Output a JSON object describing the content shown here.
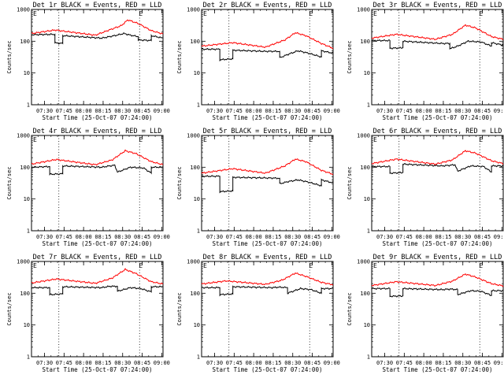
{
  "chart_data": [
    {
      "type": "line",
      "title": "Det 1r BLACK = Events, RED = LLD",
      "xlabel": "Start Time (25-Oct-07 07:24:00)",
      "ylabel": "Counts/sec",
      "yscale": "log",
      "ylim": [
        1,
        1000
      ],
      "xlim_minutes": [
        [
          -4,
          97
        ]
      ],
      "xticks": [
        "07:30",
        "07:45",
        "08:00",
        "08:15",
        "08:30",
        "08:45",
        "09:00"
      ],
      "yticks": [
        "1",
        "10",
        "100",
        "1000"
      ],
      "vlines": [
        "07:41",
        "08:43"
      ],
      "markers": [
        "E",
        "E"
      ],
      "series": [
        {
          "color": "#000000",
          "values": [
            [
              -4,
              160
            ],
            [
              14,
              165
            ],
            [
              14,
              88
            ],
            [
              20,
              85
            ],
            [
              20,
              150
            ],
            [
              50,
              125
            ],
            [
              60,
              150
            ],
            [
              67,
              175
            ],
            [
              72,
              155
            ],
            [
              78,
              140
            ],
            [
              78,
              110
            ],
            [
              88,
              105
            ],
            [
              88,
              150
            ],
            [
              97,
              125
            ]
          ]
        },
        {
          "color": "#ff0000",
          "values": [
            [
              -4,
              175
            ],
            [
              14,
              225
            ],
            [
              45,
              155
            ],
            [
              55,
              220
            ],
            [
              65,
              310
            ],
            [
              70,
              470
            ],
            [
              78,
              360
            ],
            [
              88,
              215
            ],
            [
              97,
              170
            ]
          ]
        }
      ]
    },
    {
      "type": "line",
      "title": "Det 2r BLACK = Events, RED = LLD",
      "xlabel": "Start Time (25-Oct-07 07:24:00)",
      "ylabel": "Counts/sec",
      "yscale": "log",
      "ylim": [
        1,
        1000
      ],
      "xticks": [
        "07:30",
        "07:45",
        "08:00",
        "08:15",
        "08:30",
        "08:45",
        "09:00"
      ],
      "yticks": [
        "1",
        "10",
        "100",
        "1000"
      ],
      "vlines": [
        "07:41",
        "08:43"
      ],
      "markers": [
        "E",
        "E"
      ],
      "series": [
        {
          "color": "#000000",
          "values": [
            [
              -4,
              56
            ],
            [
              10,
              56
            ],
            [
              10,
              26
            ],
            [
              20,
              28
            ],
            [
              20,
              52
            ],
            [
              45,
              48
            ],
            [
              56,
              48
            ],
            [
              56,
              30
            ],
            [
              62,
              38
            ],
            [
              70,
              50
            ],
            [
              78,
              42
            ],
            [
              88,
              32
            ],
            [
              88,
              50
            ],
            [
              97,
              42
            ]
          ]
        },
        {
          "color": "#ff0000",
          "values": [
            [
              -4,
              70
            ],
            [
              20,
              90
            ],
            [
              45,
              65
            ],
            [
              60,
              110
            ],
            [
              68,
              185
            ],
            [
              76,
              150
            ],
            [
              88,
              85
            ],
            [
              97,
              60
            ]
          ]
        }
      ]
    },
    {
      "type": "line",
      "title": "Det 3r BLACK = Events, RED = LLD",
      "xlabel": "Start Time (25-Oct-07 07:24:00)",
      "ylabel": "Counts/sec",
      "yscale": "log",
      "ylim": [
        1,
        1000
      ],
      "xticks": [
        "07:30",
        "07:45",
        "08:00",
        "08:15",
        "08:30",
        "08:45",
        "09:00"
      ],
      "yticks": [
        "1",
        "10",
        "100",
        "1000"
      ],
      "vlines": [
        "07:41",
        "08:43"
      ],
      "markers": [
        "E",
        "E"
      ],
      "series": [
        {
          "color": "#000000",
          "values": [
            [
              -4,
              105
            ],
            [
              10,
              105
            ],
            [
              10,
              60
            ],
            [
              20,
              62
            ],
            [
              20,
              100
            ],
            [
              50,
              85
            ],
            [
              56,
              85
            ],
            [
              56,
              58
            ],
            [
              62,
              70
            ],
            [
              70,
              100
            ],
            [
              80,
              95
            ],
            [
              88,
              70
            ],
            [
              88,
              90
            ],
            [
              97,
              75
            ]
          ]
        },
        {
          "color": "#ff0000",
          "values": [
            [
              -4,
              125
            ],
            [
              15,
              165
            ],
            [
              45,
              115
            ],
            [
              58,
              165
            ],
            [
              68,
              320
            ],
            [
              76,
              260
            ],
            [
              88,
              140
            ],
            [
              97,
              115
            ]
          ]
        }
      ]
    },
    {
      "type": "line",
      "title": "Det 4r BLACK = Events, RED = LLD",
      "xlabel": "Start Time (25-Oct-07 07:24:00)",
      "ylabel": "Counts/sec",
      "yscale": "log",
      "ylim": [
        1,
        1000
      ],
      "xticks": [
        "07:30",
        "07:45",
        "08:00",
        "08:15",
        "08:30",
        "08:45",
        "09:00"
      ],
      "yticks": [
        "1",
        "10",
        "100",
        "1000"
      ],
      "vlines": [
        "07:41",
        "08:43"
      ],
      "markers": [
        "E",
        "E"
      ],
      "series": [
        {
          "color": "#000000",
          "values": [
            [
              -4,
              100
            ],
            [
              10,
              105
            ],
            [
              10,
              60
            ],
            [
              20,
              62
            ],
            [
              20,
              110
            ],
            [
              50,
              100
            ],
            [
              56,
              110
            ],
            [
              60,
              115
            ],
            [
              62,
              70
            ],
            [
              72,
              100
            ],
            [
              82,
              95
            ],
            [
              88,
              65
            ],
            [
              88,
              100
            ],
            [
              97,
              100
            ]
          ]
        },
        {
          "color": "#ff0000",
          "values": [
            [
              -4,
              125
            ],
            [
              15,
              175
            ],
            [
              45,
              120
            ],
            [
              58,
              170
            ],
            [
              68,
              330
            ],
            [
              76,
              270
            ],
            [
              88,
              150
            ],
            [
              97,
              120
            ]
          ]
        }
      ]
    },
    {
      "type": "line",
      "title": "Det 5r BLACK = Events, RED = LLD",
      "xlabel": "Start Time (25-Oct-07 07:24:00)",
      "ylabel": "Counts/sec",
      "yscale": "log",
      "ylim": [
        1,
        1000
      ],
      "xticks": [
        "07:30",
        "07:45",
        "08:00",
        "08:15",
        "08:30",
        "08:45",
        "09:00"
      ],
      "yticks": [
        "1",
        "10",
        "100",
        "1000"
      ],
      "vlines": [
        "07:41",
        "08:43"
      ],
      "markers": [
        "E",
        "E"
      ],
      "series": [
        {
          "color": "#000000",
          "values": [
            [
              -4,
              52
            ],
            [
              10,
              52
            ],
            [
              10,
              17
            ],
            [
              20,
              18
            ],
            [
              20,
              48
            ],
            [
              45,
              46
            ],
            [
              56,
              45
            ],
            [
              56,
              30
            ],
            [
              62,
              35
            ],
            [
              70,
              40
            ],
            [
              78,
              34
            ],
            [
              88,
              26
            ],
            [
              88,
              40
            ],
            [
              97,
              32
            ]
          ]
        },
        {
          "color": "#ff0000",
          "values": [
            [
              -4,
              65
            ],
            [
              20,
              90
            ],
            [
              45,
              65
            ],
            [
              60,
              110
            ],
            [
              68,
              180
            ],
            [
              76,
              150
            ],
            [
              88,
              80
            ],
            [
              97,
              60
            ]
          ]
        }
      ]
    },
    {
      "type": "line",
      "title": "Det 6r BLACK = Events, RED = LLD",
      "xlabel": "Start Time (25-Oct-07 07:24:00)",
      "ylabel": "Counts/sec",
      "yscale": "log",
      "ylim": [
        1,
        1000
      ],
      "xticks": [
        "07:30",
        "07:45",
        "08:00",
        "08:15",
        "08:30",
        "08:45",
        "09:00"
      ],
      "yticks": [
        "1",
        "10",
        "100",
        "1000"
      ],
      "vlines": [
        "07:41",
        "08:43"
      ],
      "markers": [
        "E",
        "E"
      ],
      "series": [
        {
          "color": "#000000",
          "values": [
            [
              -4,
              105
            ],
            [
              10,
              105
            ],
            [
              10,
              65
            ],
            [
              20,
              68
            ],
            [
              20,
              125
            ],
            [
              50,
              110
            ],
            [
              56,
              115
            ],
            [
              60,
              120
            ],
            [
              62,
              75
            ],
            [
              72,
              110
            ],
            [
              82,
              105
            ],
            [
              88,
              70
            ],
            [
              88,
              110
            ],
            [
              97,
              110
            ]
          ]
        },
        {
          "color": "#ff0000",
          "values": [
            [
              -4,
              130
            ],
            [
              15,
              180
            ],
            [
              45,
              125
            ],
            [
              58,
              170
            ],
            [
              68,
              330
            ],
            [
              76,
              275
            ],
            [
              88,
              160
            ],
            [
              97,
              130
            ]
          ]
        }
      ]
    },
    {
      "type": "line",
      "title": "Det 7r BLACK = Events, RED = LLD",
      "xlabel": "Start Time (25-Oct-07 07:24:00)",
      "ylabel": "Counts/sec",
      "yscale": "log",
      "ylim": [
        1,
        1000
      ],
      "xticks": [
        "07:30",
        "07:45",
        "08:00",
        "08:15",
        "08:30",
        "08:45",
        "09:00"
      ],
      "yticks": [
        "1",
        "10",
        "100",
        "1000"
      ],
      "vlines": [
        "07:41",
        "08:43"
      ],
      "markers": [
        "E",
        "E"
      ],
      "series": [
        {
          "color": "#000000",
          "values": [
            [
              -4,
              150
            ],
            [
              10,
              150
            ],
            [
              10,
              90
            ],
            [
              20,
              95
            ],
            [
              20,
              160
            ],
            [
              50,
              150
            ],
            [
              56,
              165
            ],
            [
              62,
              165
            ],
            [
              62,
              115
            ],
            [
              72,
              150
            ],
            [
              80,
              140
            ],
            [
              88,
              110
            ],
            [
              88,
              160
            ],
            [
              97,
              160
            ]
          ]
        },
        {
          "color": "#ff0000",
          "values": [
            [
              -4,
              210
            ],
            [
              15,
              280
            ],
            [
              45,
              205
            ],
            [
              58,
              300
            ],
            [
              68,
              560
            ],
            [
              76,
              420
            ],
            [
              88,
              230
            ],
            [
              97,
              195
            ]
          ]
        }
      ]
    },
    {
      "type": "line",
      "title": "Det 8r BLACK = Events, RED = LLD",
      "xlabel": "Start Time (25-Oct-07 07:24:00)",
      "ylabel": "Counts/sec",
      "yscale": "log",
      "ylim": [
        1,
        1000
      ],
      "xticks": [
        "07:30",
        "07:45",
        "08:00",
        "08:15",
        "08:30",
        "08:45",
        "09:00"
      ],
      "yticks": [
        "1",
        "10",
        "100",
        "1000"
      ],
      "vlines": [
        "07:41",
        "08:43"
      ],
      "markers": [
        "E",
        "E"
      ],
      "series": [
        {
          "color": "#000000",
          "values": [
            [
              -4,
              150
            ],
            [
              10,
              150
            ],
            [
              10,
              90
            ],
            [
              20,
              95
            ],
            [
              20,
              160
            ],
            [
              50,
              150
            ],
            [
              56,
              155
            ],
            [
              62,
              150
            ],
            [
              62,
              100
            ],
            [
              72,
              140
            ],
            [
              80,
              130
            ],
            [
              88,
              100
            ],
            [
              88,
              140
            ],
            [
              97,
              140
            ]
          ]
        },
        {
          "color": "#ff0000",
          "values": [
            [
              -4,
              195
            ],
            [
              15,
              245
            ],
            [
              45,
              190
            ],
            [
              58,
              260
            ],
            [
              68,
              430
            ],
            [
              76,
              340
            ],
            [
              88,
              220
            ],
            [
              97,
              185
            ]
          ]
        }
      ]
    },
    {
      "type": "line",
      "title": "Det 9r BLACK = Events, RED = LLD",
      "xlabel": "Start Time (25-Oct-07 07:24:00)",
      "ylabel": "Counts/sec",
      "yscale": "log",
      "ylim": [
        1,
        1000
      ],
      "xticks": [
        "07:30",
        "07:45",
        "08:00",
        "08:15",
        "08:30",
        "08:45",
        "09:00"
      ],
      "yticks": [
        "1",
        "10",
        "100",
        "1000"
      ],
      "vlines": [
        "07:41",
        "08:43"
      ],
      "markers": [
        "E",
        "E"
      ],
      "series": [
        {
          "color": "#000000",
          "values": [
            [
              -4,
              140
            ],
            [
              10,
              140
            ],
            [
              10,
              80
            ],
            [
              20,
              82
            ],
            [
              20,
              140
            ],
            [
              50,
              130
            ],
            [
              56,
              135
            ],
            [
              62,
              130
            ],
            [
              62,
              90
            ],
            [
              72,
              120
            ],
            [
              80,
              115
            ],
            [
              88,
              85
            ],
            [
              88,
              120
            ],
            [
              97,
              120
            ]
          ]
        },
        {
          "color": "#ff0000",
          "values": [
            [
              -4,
              175
            ],
            [
              15,
              230
            ],
            [
              45,
              175
            ],
            [
              58,
              240
            ],
            [
              68,
              400
            ],
            [
              76,
              320
            ],
            [
              88,
              200
            ],
            [
              97,
              170
            ]
          ]
        }
      ]
    }
  ]
}
